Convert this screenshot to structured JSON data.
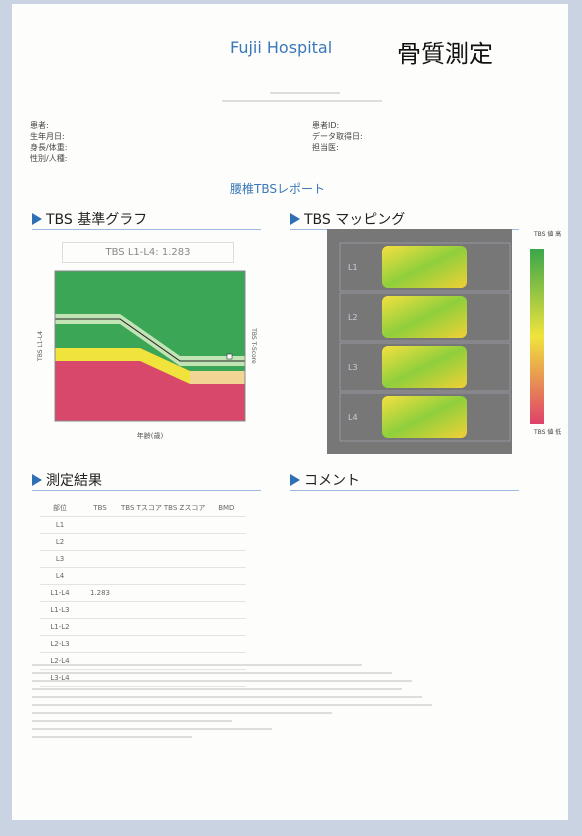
{
  "header": {
    "hospital": "Fujii Hospital",
    "title": "骨質測定"
  },
  "patient_fields": {
    "left": [
      "患者:",
      "生年月日:",
      "身長/体重:",
      "性別/人種:"
    ],
    "right": [
      "患者ID:",
      "データ取得日:",
      "担当医:"
    ]
  },
  "report_title": "腰椎TBSレポート",
  "graph": {
    "heading": "TBS 基準グラフ",
    "result": "TBS L1-L4: 1.283",
    "x_label": "年齢(歳)",
    "y_label": "TBS L1-L4",
    "y2_label": "TBS T-Score"
  },
  "mapping": {
    "heading": "TBS マッピング",
    "vertebrae": [
      "L1",
      "L2",
      "L3",
      "L4"
    ],
    "legend_high": "TBS 値 高",
    "legend_low": "TBS 値 低"
  },
  "results": {
    "heading": "測定結果",
    "columns": [
      "部位",
      "TBS",
      "TBS Tスコア",
      "TBS Zスコア",
      "BMD"
    ],
    "rows": [
      [
        "L1"
      ],
      [
        "L2"
      ],
      [
        "L3"
      ],
      [
        "L4"
      ],
      [
        "L1-L4",
        "1.283"
      ],
      [
        "L1-L3"
      ],
      [
        "L1-L2"
      ],
      [
        "L2-L3"
      ],
      [
        "L2-L4"
      ],
      [
        "L3-L4"
      ]
    ]
  },
  "comment": {
    "heading": "コメント"
  }
}
